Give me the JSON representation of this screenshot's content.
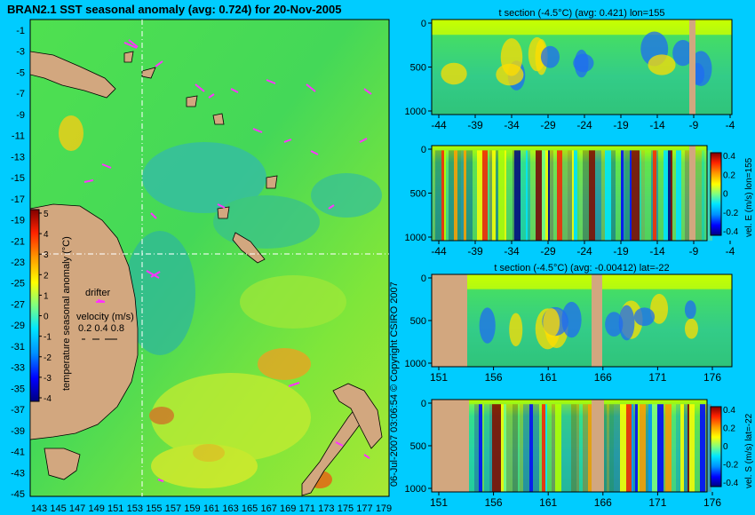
{
  "colors": {
    "background": "#00ccff",
    "land": "#d2a77f",
    "drifter": "#ff33ff",
    "cmap": [
      "#00007f",
      "#0000ff",
      "#0090ff",
      "#00e6ff",
      "#80ff80",
      "#b4ff00",
      "#ffff00",
      "#ff9900",
      "#ff2200",
      "#800000"
    ]
  },
  "map": {
    "title": "BRAN2.1 SST seasonal anomaly (avg: 0.724) for 20-Nov-2005",
    "y_ticks": [
      "-1",
      "-3",
      "-5",
      "-7",
      "-9",
      "-11",
      "-13",
      "-15",
      "-17",
      "-19",
      "-21",
      "-23",
      "-25",
      "-27",
      "-29",
      "-31",
      "-33",
      "-35",
      "-37",
      "-39",
      "-41",
      "-43",
      "-45"
    ],
    "x_ticks": [
      "143",
      "145",
      "147",
      "149",
      "151",
      "153",
      "155",
      "157",
      "159",
      "161",
      "163",
      "165",
      "167",
      "169",
      "171",
      "173",
      "175",
      "177",
      "179"
    ],
    "colorbar_label": "temperature seasonal anomaly (°C)",
    "colorbar_ticks": [
      "5",
      "4",
      "3",
      "2",
      "1",
      "0",
      "-1",
      "-2",
      "-3",
      "-4"
    ],
    "legend": {
      "drifter": "drifter",
      "velocity_label": "velocity (m/s)",
      "velocity_values": "0.2 0.4 0.8"
    },
    "copyright": "06-Jul-2007 03:06:54   © Copyright CSIRO 2007"
  },
  "chart_data": [
    {
      "type": "heatmap",
      "title": "t section (-4.5°C) (avg: 0.421) lon=155",
      "x_ticks": [
        "-44",
        "-39",
        "-34",
        "-29",
        "-24",
        "-19",
        "-14",
        "-9",
        "-4"
      ],
      "y_ticks": [
        "0",
        "500",
        "1000"
      ],
      "ylim": [
        1050,
        0
      ]
    },
    {
      "type": "heatmap",
      "title": "",
      "x_ticks": [
        "-44",
        "-39",
        "-34",
        "-29",
        "-24",
        "-19",
        "-14",
        "-9",
        "-4"
      ],
      "y_ticks": [
        "0",
        "500",
        "1000"
      ],
      "colorbar_label": "vel. E (m/s) lon=155",
      "colorbar_ticks": [
        "0.4",
        "0.2",
        "0",
        "-0.2",
        "-0.4"
      ],
      "ylim": [
        1050,
        0
      ]
    },
    {
      "type": "heatmap",
      "title": "t section (-4.5°C) (avg: -0.00412) lat=-22",
      "x_ticks": [
        "151",
        "156",
        "161",
        "166",
        "171",
        "176"
      ],
      "y_ticks": [
        "0",
        "500",
        "1000"
      ],
      "ylim": [
        1050,
        0
      ]
    },
    {
      "type": "heatmap",
      "title": "",
      "x_ticks": [
        "151",
        "156",
        "161",
        "166",
        "171",
        "176"
      ],
      "y_ticks": [
        "0",
        "500",
        "1000"
      ],
      "colorbar_label": "vel. S (m/s) lat=-22",
      "colorbar_ticks": [
        "0.4",
        "0.2",
        "0",
        "-0.2",
        "-0.4"
      ],
      "ylim": [
        1050,
        0
      ]
    }
  ]
}
